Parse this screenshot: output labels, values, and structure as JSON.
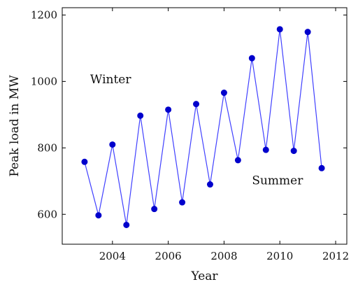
{
  "chart_data": {
    "type": "line",
    "title": "",
    "xlabel": "Year",
    "ylabel": "Peak load in MW",
    "xlim": [
      2002.2,
      2012.4
    ],
    "ylim": [
      510,
      1222
    ],
    "xticks": [
      2004,
      2006,
      2008,
      2010,
      2012
    ],
    "yticks": [
      600,
      800,
      1000,
      1200
    ],
    "grid": false,
    "colors": {
      "line": "#4040ff",
      "marker": "#0000cc"
    },
    "series": [
      {
        "x": [
          2003.0,
          2003.5,
          2004.0,
          2004.5,
          2005.0,
          2005.5,
          2006.0,
          2006.5,
          2007.0,
          2007.5,
          2008.0,
          2008.5,
          2009.0,
          2009.5,
          2010.0,
          2010.5,
          2011.0,
          2011.5
        ],
        "y": [
          758,
          597,
          810,
          568,
          897,
          616,
          915,
          636,
          932,
          690,
          966,
          763,
          1070,
          794,
          1157,
          791,
          1149,
          739
        ]
      }
    ],
    "annotations": [
      {
        "text": "Winter",
        "x": 2003.2,
        "y": 995
      },
      {
        "text": "Summer",
        "x": 2009.0,
        "y": 690
      }
    ]
  }
}
